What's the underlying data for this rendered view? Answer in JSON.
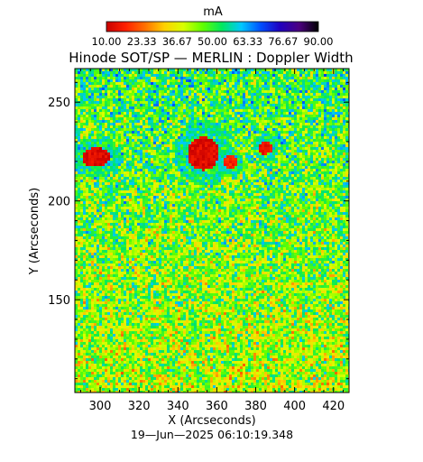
{
  "chart_data": {
    "type": "heatmap",
    "title": "Hinode SOT/SP — MERLIN : Doppler Width",
    "xlabel": "X (Arcseconds)",
    "ylabel": "Y (Arcseconds)",
    "timestamp": "19—Jun—2025 06:10:19.348",
    "xlim": [
      287,
      428
    ],
    "ylim": [
      103,
      267
    ],
    "x_ticks": [
      300,
      320,
      340,
      360,
      380,
      400,
      420
    ],
    "x_tick_labels": [
      "300",
      "320",
      "340",
      "360",
      "380",
      "400",
      "420"
    ],
    "y_ticks": [
      150,
      200,
      250
    ],
    "y_tick_labels": [
      "150",
      "200",
      "250"
    ],
    "colorbar": {
      "unit": "mA",
      "min": 10.0,
      "max": 90.0,
      "ticks": [
        10.0,
        23.33,
        36.67,
        50.0,
        63.33,
        76.67,
        90.0
      ],
      "tick_labels": [
        "10.00",
        "23.33",
        "36.67",
        "50.00",
        "63.33",
        "76.67",
        "90.00"
      ],
      "colormap": [
        "#c80000",
        "#ff2000",
        "#ff7000",
        "#ffd000",
        "#d8ff00",
        "#60ff00",
        "#00e860",
        "#00c8ff",
        "#0050ff",
        "#2000c0",
        "#4c0080",
        "#000000"
      ]
    },
    "grid": false,
    "features": [
      {
        "name": "sunspot-1",
        "x": 298,
        "y": 222,
        "value": 10
      },
      {
        "name": "sunspot-2",
        "x": 353,
        "y": 224,
        "value": 10
      },
      {
        "name": "pore-1",
        "x": 367,
        "y": 220,
        "value": 14
      },
      {
        "name": "pore-2",
        "x": 385,
        "y": 227,
        "value": 12
      }
    ]
  }
}
